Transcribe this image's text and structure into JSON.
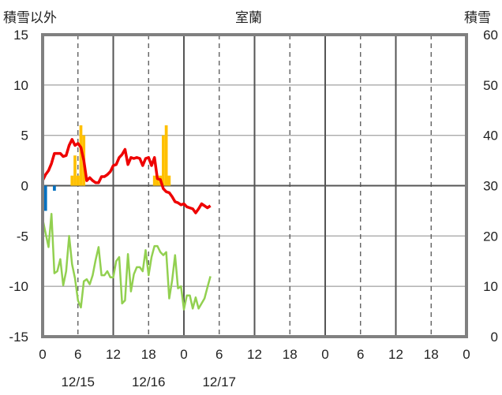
{
  "chart_data": {
    "type": "line",
    "title": "室蘭",
    "left_axis_label": "積雪以外",
    "right_axis_label": "積雪",
    "ylim_left": [
      -15,
      15
    ],
    "yticks_left": [
      15,
      10,
      5,
      0,
      -5,
      -10,
      -15
    ],
    "ylim_right": [
      0,
      60
    ],
    "yticks_right": [
      60,
      50,
      40,
      30,
      20,
      10,
      0
    ],
    "x_range_hours": [
      0,
      144
    ],
    "x_tick_labels": [
      "0",
      "6",
      "12",
      "18",
      "0",
      "6",
      "12",
      "18",
      "0",
      "6",
      "12",
      "18",
      "0"
    ],
    "date_labels": [
      {
        "label": "12/15",
        "hour": 12
      },
      {
        "label": "12/16",
        "hour": 36
      },
      {
        "label": "12/17",
        "hour": 60
      }
    ],
    "grid": true,
    "colors": {
      "frame": "#808080",
      "temperature": "#ee0000",
      "snowfall": "#ffc000",
      "precipitation": "#0070c0",
      "snow_depth": "#7030a0",
      "wind": "#92d050"
    },
    "series": [
      {
        "name": "",
        "axis": "left",
        "color": "#ee0000",
        "x": [
          0,
          1,
          2,
          3,
          4,
          5,
          6,
          7,
          8,
          9,
          10,
          11,
          12,
          13,
          14,
          15,
          16,
          17,
          18,
          19,
          20,
          21,
          22,
          23,
          24,
          25,
          26,
          27,
          28,
          29,
          30,
          31,
          32,
          33,
          34,
          35,
          36,
          37,
          38,
          39,
          40,
          41,
          42,
          43,
          44,
          45,
          46,
          47,
          48,
          49,
          50,
          51,
          52,
          53,
          54,
          55,
          56,
          57
        ],
        "values": [
          0.5,
          1.1,
          1.5,
          2.2,
          3.2,
          3.2,
          3.2,
          2.9,
          3.0,
          4.0,
          4.6,
          4.0,
          4.2,
          3.8,
          2.5,
          0.5,
          0.8,
          0.5,
          0.3,
          0.3,
          0.9,
          0.9,
          1.1,
          1.4,
          2.0,
          2.1,
          2.8,
          3.1,
          3.6,
          2.1,
          2.8,
          2.7,
          2.8,
          2.7,
          2.0,
          2.7,
          2.8,
          2.0,
          2.8,
          0.7,
          0.6,
          -0.3,
          -0.6,
          -0.7,
          -1.1,
          -1.6,
          -1.7,
          -1.9,
          -1.8,
          -2.1,
          -2.2,
          -2.3,
          -2.7,
          -2.3,
          -1.8,
          -2.0,
          -2.2,
          -2.0
        ]
      },
      {
        "name": "",
        "axis": "left",
        "color": "#92d050",
        "x": [
          0,
          1,
          2,
          3,
          4,
          5,
          6,
          7,
          8,
          9,
          10,
          11,
          12,
          13,
          14,
          15,
          16,
          17,
          18,
          19,
          20,
          21,
          22,
          23,
          24,
          25,
          26,
          27,
          28,
          29,
          30,
          31,
          32,
          33,
          34,
          35,
          36,
          37,
          38,
          39,
          40,
          41,
          42,
          43,
          44,
          45,
          46,
          47,
          48,
          49,
          50,
          51,
          52,
          53,
          54,
          55,
          56,
          57
        ],
        "values": [
          -3.3,
          -4.7,
          -6.1,
          -2.8,
          -8.7,
          -8.5,
          -7.3,
          -9.9,
          -8.5,
          -5.0,
          -7.8,
          -9.2,
          -11.4,
          -12.1,
          -9.5,
          -9.3,
          -9.8,
          -8.9,
          -7.4,
          -6.1,
          -8.9,
          -8.9,
          -8.5,
          -9.1,
          -9.1,
          -7.5,
          -7.1,
          -11.7,
          -11.4,
          -6.8,
          -10.5,
          -8.8,
          -8.1,
          -8.1,
          -8.5,
          -6.4,
          -8.9,
          -7.1,
          -6.0,
          -6.0,
          -6.6,
          -6.9,
          -6.6,
          -11.2,
          -9.4,
          -6.9,
          -10.2,
          -10.0,
          -12.3,
          -10.9,
          -10.9,
          -12.2,
          -11.1,
          -12.2,
          -11.7,
          -11.2,
          -10.1,
          -9.0
        ]
      }
    ],
    "bars": [
      {
        "name": "",
        "axis": "left",
        "color": "#ffc000",
        "x": [
          10,
          11,
          12,
          13,
          14,
          38,
          39,
          40,
          41,
          42,
          43
        ],
        "values": [
          1,
          3,
          1,
          6,
          5,
          1,
          1,
          1,
          5,
          6,
          1
        ]
      },
      {
        "name": "",
        "axis": "left",
        "color": "#0070c0",
        "x": [
          0,
          1,
          4
        ],
        "values": [
          -1.8,
          -2.5,
          -0.5
        ]
      }
    ],
    "snow_depth": {
      "name": "",
      "axis": "right",
      "color": "#7030a0",
      "x": [
        0,
        57
      ],
      "values": [
        0,
        0
      ]
    }
  }
}
